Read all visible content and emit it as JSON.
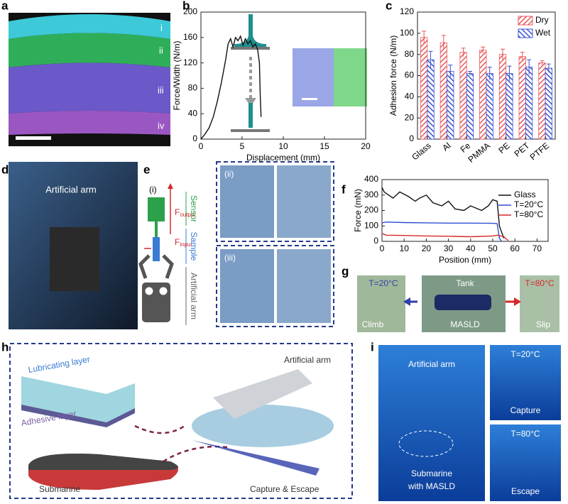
{
  "chart_data": [
    {
      "type": "line",
      "panel_label": "b",
      "x_label": "Displacement (mm)",
      "y_label": "Force/Width (N/m)",
      "color": "#111111",
      "x": [
        0,
        0.5,
        1,
        1.5,
        2,
        2.5,
        3,
        3.3,
        3.6,
        3.9,
        4.2,
        4.5,
        4.8,
        5.1,
        5.4,
        5.7,
        6,
        6.3,
        6.6,
        6.9,
        7.1,
        7.2,
        7.3
      ],
      "values": [
        0,
        8,
        18,
        35,
        60,
        90,
        125,
        150,
        158,
        145,
        160,
        155,
        162,
        148,
        158,
        150,
        155,
        145,
        150,
        140,
        120,
        70,
        35
      ],
      "xlim": [
        0,
        20
      ],
      "xticks": [
        0,
        5,
        10,
        15,
        20
      ],
      "ylim": [
        0,
        200
      ],
      "yticks": [
        0,
        40,
        80,
        120,
        160,
        200
      ]
    },
    {
      "type": "bar",
      "panel_label": "c",
      "y_label": "Adhesion force (N/m)",
      "legend": "upper right",
      "categories": [
        "Glass",
        "Al",
        "Fe",
        "PMMA",
        "PE",
        "PET",
        "PTFE"
      ],
      "series": [
        {
          "name": "Dry",
          "color": "#e8575a",
          "values": [
            96,
            91,
            82,
            84,
            80,
            78,
            72
          ],
          "errors": [
            6,
            7,
            4,
            3,
            5,
            4,
            2
          ]
        },
        {
          "name": "Wet",
          "color": "#3d52d5",
          "values": [
            75,
            64,
            62,
            62,
            62,
            68,
            67
          ],
          "errors": [
            8,
            6,
            2,
            6,
            7,
            7,
            4
          ]
        }
      ],
      "ylim": [
        0,
        120
      ],
      "yticks": [
        0,
        20,
        40,
        60,
        80,
        100,
        120
      ]
    },
    {
      "type": "line",
      "panel_label": "f",
      "x_label": "Position (mm)",
      "y_label": "Force (mN)",
      "legend": "center right",
      "series": [
        {
          "name": "Glass",
          "color": "#111111",
          "x": [
            0,
            1,
            3,
            5,
            8,
            12,
            15,
            17,
            20,
            23,
            27,
            30,
            33,
            37,
            40,
            45,
            48,
            50,
            52,
            53,
            55
          ],
          "values": [
            350,
            320,
            300,
            280,
            320,
            290,
            260,
            280,
            300,
            250,
            230,
            260,
            210,
            200,
            230,
            200,
            230,
            270,
            260,
            100,
            20
          ]
        },
        {
          "name": "T=20°C",
          "color": "#2f4fd0",
          "x": [
            0,
            2,
            10,
            20,
            30,
            40,
            50,
            52,
            53,
            54
          ],
          "values": [
            120,
            125,
            122,
            120,
            118,
            118,
            117,
            115,
            20,
            0
          ]
        },
        {
          "name": "T=80°C",
          "color": "#d42a2a",
          "x": [
            0,
            2,
            10,
            20,
            30,
            40,
            50,
            52,
            55,
            57
          ],
          "values": [
            50,
            40,
            38,
            35,
            33,
            30,
            35,
            40,
            30,
            5
          ]
        }
      ],
      "xlim": [
        0,
        75
      ],
      "xticks": [
        0,
        10,
        20,
        30,
        40,
        50,
        60,
        70
      ],
      "ylim": [
        0,
        400
      ],
      "yticks": [
        0,
        100,
        200,
        300,
        400
      ]
    }
  ],
  "panels": {
    "a": {
      "label": "a",
      "layers": [
        "i",
        "ii",
        "iii",
        "iv"
      ]
    },
    "d": {
      "label": "d",
      "caption": "Artificial arm"
    },
    "e": {
      "label": "e",
      "parts": [
        "(i)",
        "(ii)",
        "(iii)"
      ],
      "sensor": "Sensor",
      "sample": "Sample",
      "arm": "Artificial arm",
      "f_output": {
        "symbol": "F",
        "sub": "output"
      },
      "f_input": {
        "symbol": "F",
        "sub": "input"
      }
    },
    "g": {
      "label": "g",
      "cold": "T=20°C",
      "tank": "Tank",
      "hot": "T=80°C",
      "climb": "Climb",
      "device": "MASLD",
      "slip": "Slip"
    },
    "h": {
      "label": "h",
      "lubricating": "Lubricating layer",
      "adhesive": "Adhesive layer",
      "arm": "Artificial arm",
      "submarine": "Submarine",
      "action": "Capture & Escape"
    },
    "i": {
      "label": "i",
      "arm": "Artificial arm",
      "submarine": [
        "Submarine",
        "with MASLD"
      ],
      "cold": "T=20°C",
      "capture": "Capture",
      "hot": "T=80°C",
      "escape": "Escape"
    }
  }
}
